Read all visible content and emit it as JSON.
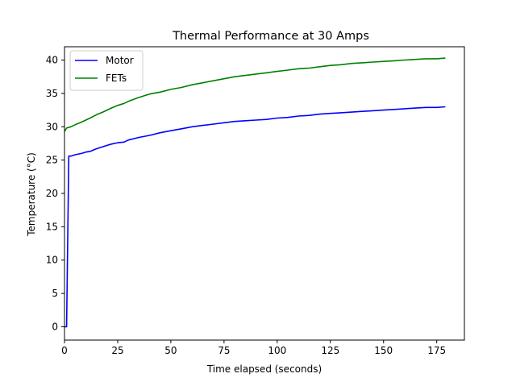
{
  "chart_data": {
    "type": "line",
    "title": "Thermal Performance at 30 Amps",
    "xlabel": "Time elapsed (seconds)",
    "ylabel": "Temperature (°C)",
    "xlim": [
      0,
      188
    ],
    "ylim": [
      -2,
      42
    ],
    "xticks": [
      0,
      25,
      50,
      75,
      100,
      125,
      150,
      175
    ],
    "yticks": [
      0,
      5,
      10,
      15,
      20,
      25,
      30,
      35,
      40
    ],
    "grid": false,
    "legend_position": "upper-left",
    "series": [
      {
        "name": "Motor",
        "color": "#0000ff",
        "points": [
          [
            0,
            0
          ],
          [
            1,
            0
          ],
          [
            2,
            25.6
          ],
          [
            3,
            25.6
          ],
          [
            5,
            25.8
          ],
          [
            8,
            26.0
          ],
          [
            10,
            26.2
          ],
          [
            12,
            26.3
          ],
          [
            15,
            26.7
          ],
          [
            17,
            26.9
          ],
          [
            20,
            27.2
          ],
          [
            22,
            27.4
          ],
          [
            25,
            27.6
          ],
          [
            28,
            27.7
          ],
          [
            30,
            28.0
          ],
          [
            35,
            28.4
          ],
          [
            40,
            28.7
          ],
          [
            45,
            29.1
          ],
          [
            50,
            29.4
          ],
          [
            55,
            29.7
          ],
          [
            60,
            30.0
          ],
          [
            65,
            30.2
          ],
          [
            70,
            30.4
          ],
          [
            75,
            30.6
          ],
          [
            80,
            30.8
          ],
          [
            85,
            30.9
          ],
          [
            90,
            31.0
          ],
          [
            95,
            31.1
          ],
          [
            100,
            31.3
          ],
          [
            105,
            31.4
          ],
          [
            110,
            31.6
          ],
          [
            115,
            31.7
          ],
          [
            120,
            31.9
          ],
          [
            125,
            32.0
          ],
          [
            130,
            32.1
          ],
          [
            135,
            32.2
          ],
          [
            140,
            32.3
          ],
          [
            145,
            32.4
          ],
          [
            150,
            32.5
          ],
          [
            155,
            32.6
          ],
          [
            160,
            32.7
          ],
          [
            165,
            32.8
          ],
          [
            170,
            32.9
          ],
          [
            175,
            32.9
          ],
          [
            179,
            33.0
          ]
        ]
      },
      {
        "name": "FETs",
        "color": "#008000",
        "points": [
          [
            0,
            29.3
          ],
          [
            1,
            29.8
          ],
          [
            3,
            30.0
          ],
          [
            5,
            30.3
          ],
          [
            8,
            30.7
          ],
          [
            10,
            31.0
          ],
          [
            12,
            31.3
          ],
          [
            15,
            31.8
          ],
          [
            18,
            32.2
          ],
          [
            20,
            32.5
          ],
          [
            22,
            32.8
          ],
          [
            25,
            33.2
          ],
          [
            28,
            33.5
          ],
          [
            30,
            33.8
          ],
          [
            35,
            34.4
          ],
          [
            40,
            34.9
          ],
          [
            45,
            35.2
          ],
          [
            50,
            35.6
          ],
          [
            55,
            35.9
          ],
          [
            60,
            36.3
          ],
          [
            65,
            36.6
          ],
          [
            70,
            36.9
          ],
          [
            75,
            37.2
          ],
          [
            80,
            37.5
          ],
          [
            85,
            37.7
          ],
          [
            90,
            37.9
          ],
          [
            95,
            38.1
          ],
          [
            100,
            38.3
          ],
          [
            105,
            38.5
          ],
          [
            110,
            38.7
          ],
          [
            115,
            38.8
          ],
          [
            120,
            39.0
          ],
          [
            125,
            39.2
          ],
          [
            130,
            39.3
          ],
          [
            135,
            39.5
          ],
          [
            140,
            39.6
          ],
          [
            145,
            39.7
          ],
          [
            150,
            39.8
          ],
          [
            155,
            39.9
          ],
          [
            160,
            40.0
          ],
          [
            165,
            40.1
          ],
          [
            170,
            40.2
          ],
          [
            175,
            40.2
          ],
          [
            179,
            40.3
          ]
        ]
      }
    ]
  }
}
